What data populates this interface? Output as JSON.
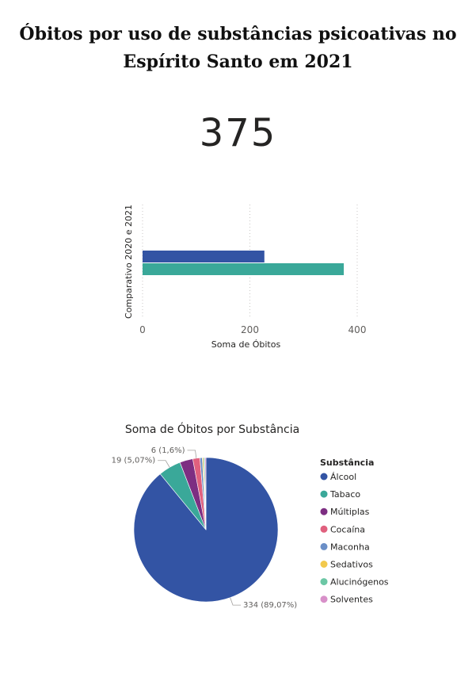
{
  "header": {
    "title_line1": "Óbitos por uso de substâncias psicoativas no",
    "title_line2": "Espírito Santo em 2021"
  },
  "kpi": {
    "value": "375"
  },
  "chart_data": [
    {
      "type": "bar",
      "orientation": "horizontal",
      "title": "",
      "xlabel": "Soma de Óbitos",
      "ylabel": "Comparativo 2020 e 2021",
      "xlim": [
        0,
        400
      ],
      "xticks": [
        "0",
        "200",
        "400"
      ],
      "grid": true,
      "series": [
        {
          "values": [
            227
          ],
          "color": "#3354a4"
        },
        {
          "values": [
            375
          ],
          "color": "#3aa899"
        }
      ]
    },
    {
      "type": "pie",
      "title": "Soma de Óbitos por Substância",
      "legend_title": "Substância",
      "legend_position": "right",
      "slices": [
        {
          "name": "Álcool",
          "value": 334,
          "label": "334 (89,07%)",
          "color": "#3354a4"
        },
        {
          "name": "Tabaco",
          "value": 19,
          "label": "19 (5,07%)",
          "color": "#3aa899"
        },
        {
          "name": "Múltiplas",
          "value": 11,
          "label": "",
          "color": "#7d2e82"
        },
        {
          "name": "Cocaína",
          "value": 6,
          "label": "6 (1,6%)",
          "color": "#e0607e"
        },
        {
          "name": "Maconha",
          "value": 2,
          "label": "",
          "color": "#6b8fc7"
        },
        {
          "name": "Sedativos",
          "value": 1,
          "label": "",
          "color": "#f2c94c"
        },
        {
          "name": "Alucinógenos",
          "value": 1,
          "label": "",
          "color": "#6cc7a5"
        },
        {
          "name": "Solventes",
          "value": 1,
          "label": "",
          "color": "#d890c9"
        }
      ]
    }
  ]
}
